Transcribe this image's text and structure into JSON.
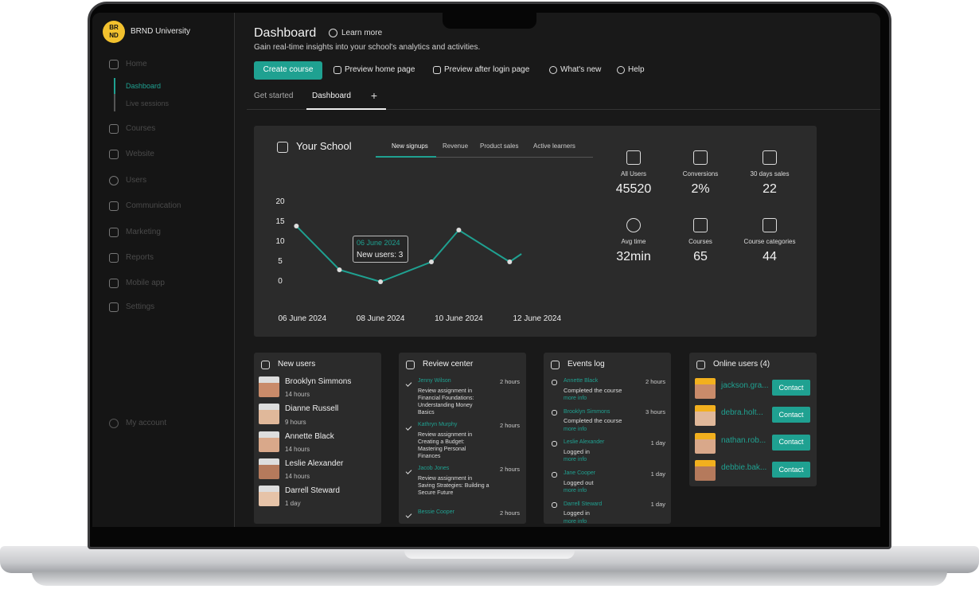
{
  "brand": {
    "logo": [
      "BR",
      "ND"
    ],
    "name": "BRND University"
  },
  "nav": {
    "items": [
      "Home",
      "Courses",
      "Website",
      "Users",
      "Communication",
      "Marketing",
      "Reports",
      "Mobile app",
      "Settings"
    ],
    "home_children": [
      "Dashboard",
      "Live sessions"
    ],
    "account": "My account"
  },
  "header": {
    "title": "Dashboard",
    "learn_more": "Learn more",
    "subtitle": "Gain real-time insights into your school's analytics and activities.",
    "actions": [
      "Create course",
      "Preview home page",
      "Preview after login page",
      "What's new",
      "Help"
    ],
    "tabs": [
      "Get started",
      "Dashboard",
      "+"
    ]
  },
  "school": {
    "title": "Your School",
    "tabs": [
      "New signups",
      "Revenue",
      "Product sales",
      "Active learners"
    ],
    "chart": {
      "type": "line",
      "color": "#1fa191",
      "x": [
        5.85,
        6.95,
        8,
        9.3,
        10,
        11.3,
        11.6
      ],
      "values": [
        14,
        3,
        0,
        5,
        13,
        5,
        7
      ],
      "xlim": [
        5.7,
        11.7
      ],
      "xticks": [
        {
          "value": 6,
          "label": "06 June 2024"
        },
        {
          "value": 8,
          "label": "08 June 2024"
        },
        {
          "value": 10,
          "label": "10 June 2024"
        },
        {
          "value": 12,
          "label": "12 June 2024"
        }
      ],
      "ylim": [
        0,
        20
      ],
      "yticks": [
        0,
        5,
        10,
        15,
        20
      ],
      "tooltip": {
        "date": "06 June 2024",
        "text": "New users: 3"
      }
    },
    "stats": [
      {
        "label": "All Users",
        "value": "45520"
      },
      {
        "label": "Conversions",
        "value": "2%"
      },
      {
        "label": "30 days sales",
        "value": "22"
      },
      {
        "label": "Avg time",
        "value": "32min"
      },
      {
        "label": "Courses",
        "value": "65"
      },
      {
        "label": "Course categories",
        "value": "44"
      }
    ]
  },
  "new_users": {
    "title": "New users",
    "rows": [
      {
        "name": "Brooklyn Simmons",
        "time": "14 hours"
      },
      {
        "name": "Dianne Russell",
        "time": "9 hours"
      },
      {
        "name": "Annette Black",
        "time": "14 hours"
      },
      {
        "name": "Leslie Alexander",
        "time": "14 hours"
      },
      {
        "name": "Darrell Steward",
        "time": "1 day"
      }
    ]
  },
  "review_center": {
    "title": "Review center",
    "items": [
      {
        "name": "Jenny Wilson",
        "text": "Review assignment in Financial Foundations: Understanding Money Basics",
        "time": "2 hours"
      },
      {
        "name": "Kathryn Murphy",
        "text": "Review assignment in Creating a Budget: Mastering Personal Finances",
        "time": "2 hours"
      },
      {
        "name": "Jacob Jones",
        "text": "Review assignment in Saving Strategies: Building a Secure Future",
        "time": "2 hours"
      },
      {
        "name": "Bessie Cooper",
        "text": "",
        "time": "2 hours"
      }
    ]
  },
  "events_log": {
    "title": "Events log",
    "items": [
      {
        "name": "Annette Black",
        "action": "Completed the course",
        "link": "more info",
        "time": "2 hours"
      },
      {
        "name": "Brooklyn Simmons",
        "action": "Completed the course",
        "link": "more info",
        "time": "3 hours"
      },
      {
        "name": "Leslie Alexander",
        "action": "Logged in",
        "link": "more info",
        "time": "1 day"
      },
      {
        "name": "Jane Cooper",
        "action": "Logged out",
        "link": "more info",
        "time": "1 day"
      },
      {
        "name": "Darrell Steward",
        "action": "Logged in",
        "link": "more info",
        "time": "1 day"
      }
    ]
  },
  "online_users": {
    "title": "Online users (4)",
    "button": "Contact",
    "users": [
      "jackson.gra...",
      "debra.holt...",
      "nathan.rob...",
      "debbie.bak..."
    ]
  }
}
